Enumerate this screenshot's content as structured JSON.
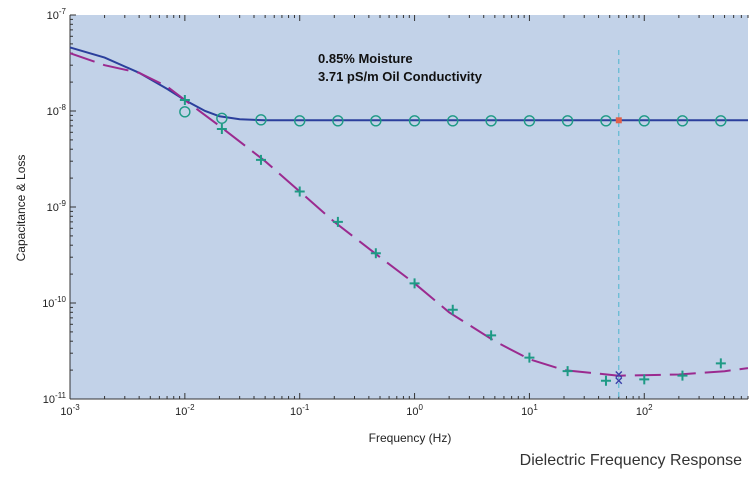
{
  "caption": "Dielectric Frequency Response",
  "colors": {
    "background": "#c2d2e8",
    "capacitance_line": "#2b3f9c",
    "loss_line": "#9b2a8f",
    "markers": "#1e9a85",
    "vline": "#4db5cf",
    "highlight": "#e0604a",
    "x_marker": "#3a3fa8"
  },
  "chart_data": {
    "type": "line",
    "xlabel": "Frequency (Hz)",
    "ylabel": "Capacitance & Loss",
    "xscale": "log",
    "yscale": "log",
    "xlim": [
      0.001,
      800
    ],
    "ylim": [
      1e-11,
      1e-07
    ],
    "x_ticks": [
      {
        "value": 0.001,
        "base": "10",
        "exp": "-3"
      },
      {
        "value": 0.01,
        "base": "10",
        "exp": "-2"
      },
      {
        "value": 0.1,
        "base": "10",
        "exp": "-1"
      },
      {
        "value": 1,
        "base": "10",
        "exp": "0"
      },
      {
        "value": 10,
        "base": "10",
        "exp": "1"
      },
      {
        "value": 100,
        "base": "10",
        "exp": "2"
      }
    ],
    "y_ticks": [
      {
        "value": 1e-11,
        "base": "10",
        "exp": "-11"
      },
      {
        "value": 1e-10,
        "base": "10",
        "exp": "-10"
      },
      {
        "value": 1e-09,
        "base": "10",
        "exp": "-9"
      },
      {
        "value": 1e-08,
        "base": "10",
        "exp": "-8"
      },
      {
        "value": 1e-07,
        "base": "10",
        "exp": "-7"
      }
    ],
    "annotations": [
      "0.85% Moisture",
      "3.71 pS/m Oil Conductivity"
    ],
    "reference_line_x": 60,
    "series": [
      {
        "style": "solid",
        "x": [
          0.001,
          0.002,
          0.004,
          0.007,
          0.01,
          0.015,
          0.02,
          0.03,
          0.05,
          0.1,
          1,
          10,
          100,
          800
        ],
        "values": [
          4.6e-08,
          3.6e-08,
          2.5e-08,
          1.7e-08,
          1.3e-08,
          1e-08,
          8.8e-09,
          8.2e-09,
          8e-09,
          8e-09,
          8e-09,
          8e-09,
          8e-09,
          8e-09
        ]
      },
      {
        "style": "dashed",
        "x": [
          0.001,
          0.002,
          0.004,
          0.007,
          0.01,
          0.02,
          0.05,
          0.1,
          0.2,
          0.5,
          1,
          2,
          5,
          10,
          20,
          60,
          200,
          500,
          800
        ],
        "values": [
          4e-08,
          3e-08,
          2.5e-08,
          1.8e-08,
          1.3e-08,
          7e-09,
          3e-09,
          1.45e-09,
          7e-10,
          3e-10,
          1.6e-10,
          8e-11,
          4e-11,
          2.6e-11,
          2e-11,
          1.75e-11,
          1.8e-11,
          1.95e-11,
          2.1e-11
        ]
      },
      {
        "marker": "circle",
        "x": [
          0.01,
          0.021,
          0.046,
          0.1,
          0.215,
          0.46,
          1.0,
          2.15,
          4.64,
          10,
          21.5,
          46.4,
          100,
          215,
          464
        ],
        "values": [
          9.8e-09,
          8.4e-09,
          8.1e-09,
          7.9e-09,
          7.9e-09,
          7.9e-09,
          7.9e-09,
          7.9e-09,
          7.9e-09,
          7.9e-09,
          7.9e-09,
          7.9e-09,
          7.9e-09,
          7.9e-09,
          7.9e-09
        ]
      },
      {
        "marker": "plus",
        "x": [
          0.01,
          0.021,
          0.046,
          0.1,
          0.215,
          0.46,
          1.0,
          2.15,
          4.64,
          10,
          21.5,
          46.4,
          100,
          215,
          464
        ],
        "values": [
          1.3e-08,
          6.5e-09,
          3.1e-09,
          1.45e-09,
          7e-10,
          3.3e-10,
          1.6e-10,
          8.5e-11,
          4.6e-11,
          2.7e-11,
          1.95e-11,
          1.55e-11,
          1.6e-11,
          1.75e-11,
          2.35e-11
        ]
      },
      {
        "marker": "x",
        "x": [
          60,
          60
        ],
        "values": [
          1.8e-11,
          1.55e-11
        ]
      },
      {
        "marker": "highlight",
        "x": [
          60
        ],
        "values": [
          8e-09
        ]
      }
    ]
  }
}
